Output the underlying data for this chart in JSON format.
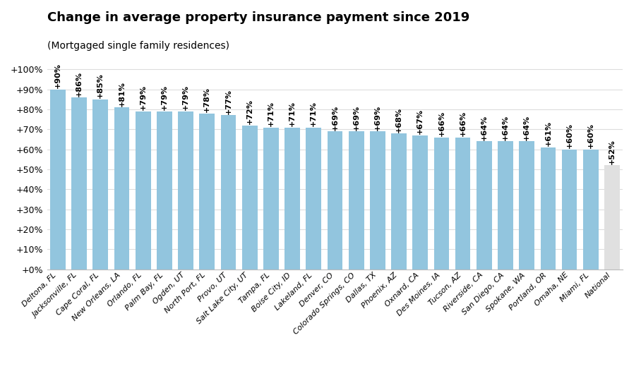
{
  "title": "Change in average property insurance payment since 2019",
  "subtitle": "(Mortgaged single family residences)",
  "categories": [
    "Deltona, FL",
    "Jacksonville, FL",
    "Cape Coral, FL",
    "New Orleans, LA",
    "Orlando, FL",
    "Palm Bay, FL",
    "Ogden, UT",
    "North Port, FL",
    "Provo, UT",
    "Salt Lake City, UT",
    "Tampa, FL",
    "Boise City, ID",
    "Lakeland, FL",
    "Denver, CO",
    "Colorado Springs, CO",
    "Dallas, TX",
    "Phoenix, AZ",
    "Oxnard, CA",
    "Des Moines, IA",
    "Tucson, AZ",
    "Riverside, CA",
    "San Diego, CA",
    "Spokane, WA",
    "Portland, OR",
    "Omaha, NE",
    "Miami, FL",
    "National"
  ],
  "values": [
    90,
    86,
    85,
    81,
    79,
    79,
    79,
    78,
    77,
    72,
    71,
    71,
    71,
    69,
    69,
    69,
    68,
    67,
    66,
    66,
    64,
    64,
    64,
    61,
    60,
    60,
    52
  ],
  "bar_color_main": "#92C5DE",
  "bar_color_national": "#E0E0E0",
  "title_fontsize": 13,
  "subtitle_fontsize": 10,
  "label_fontsize": 8,
  "tick_fontsize": 9,
  "yticks": [
    0,
    10,
    20,
    30,
    40,
    50,
    60,
    70,
    80,
    90,
    100
  ],
  "ytick_labels": [
    "+0%",
    "+10%",
    "+20%",
    "+30%",
    "+40%",
    "+50%",
    "+60%",
    "+70%",
    "+80%",
    "+90%",
    "+100%"
  ],
  "ylim": [
    0,
    107
  ],
  "background_color": "#ffffff"
}
